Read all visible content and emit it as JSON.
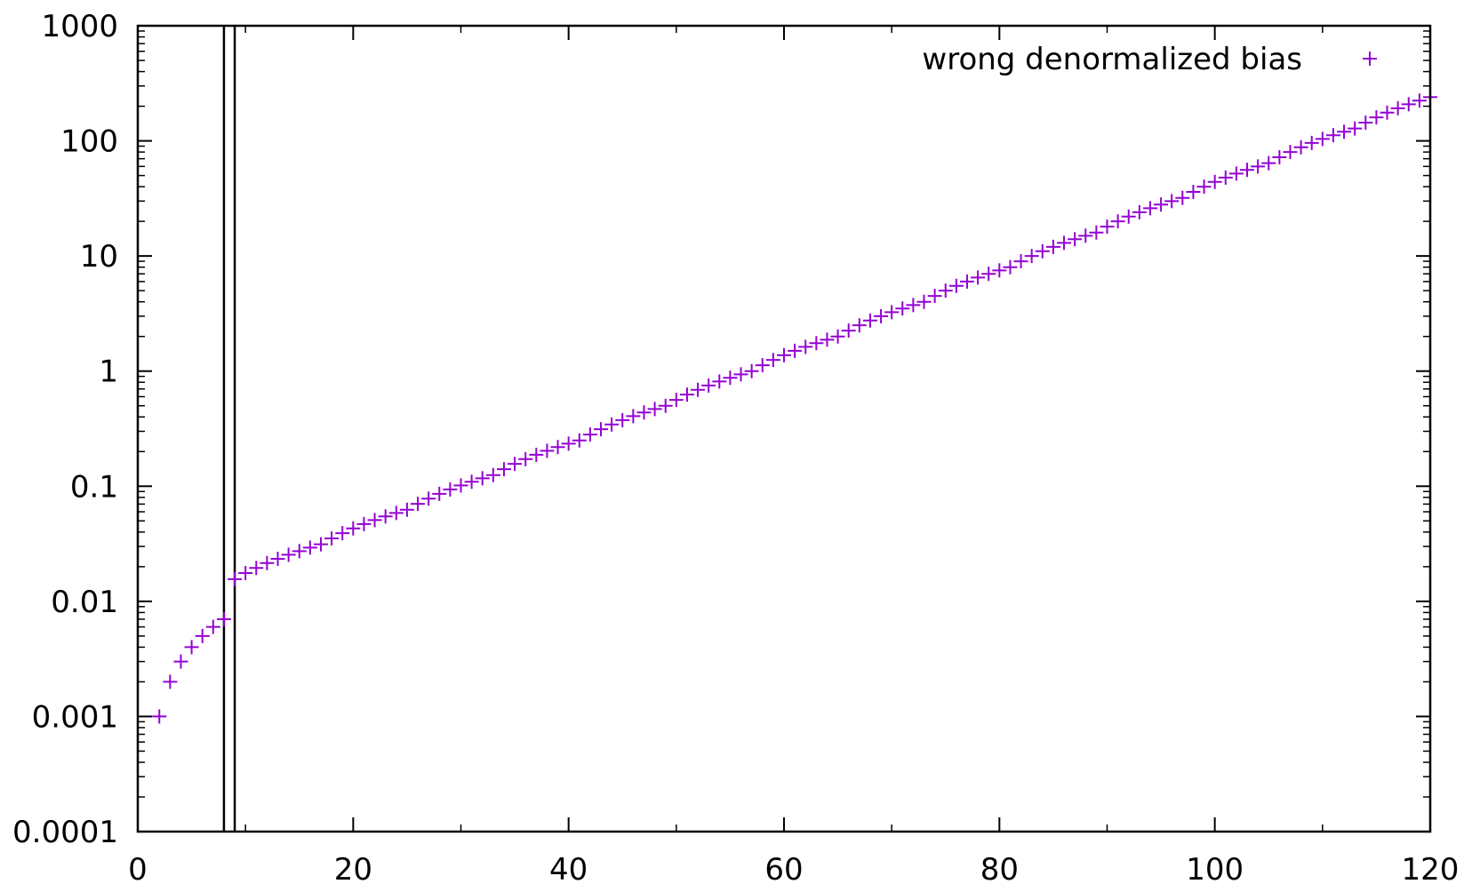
{
  "chart_data": {
    "type": "scatter",
    "title": "",
    "xlabel": "",
    "ylabel": "",
    "xlim": [
      0,
      120
    ],
    "ylim": [
      0.0001,
      1000
    ],
    "y_scale": "log",
    "grid": false,
    "legend_position": "top-right",
    "x_ticks": [
      0,
      20,
      40,
      60,
      80,
      100,
      120
    ],
    "x_tick_labels": [
      "0",
      "20",
      "40",
      "60",
      "80",
      "100",
      "120"
    ],
    "y_ticks": [
      0.0001,
      0.001,
      0.01,
      0.1,
      1,
      10,
      100,
      1000
    ],
    "y_tick_labels": [
      "0.0001",
      "0.001",
      "0.01",
      "0.1",
      "1",
      "10",
      "100",
      "1000"
    ],
    "vertical_lines": [
      8,
      9
    ],
    "series": [
      {
        "name": "wrong denormalized bias",
        "color": "#9400d3",
        "marker": "plus",
        "x": [
          2,
          3,
          4,
          5,
          6,
          7,
          8,
          9,
          10,
          11,
          12,
          13,
          14,
          15,
          16,
          17,
          18,
          19,
          20,
          21,
          22,
          23,
          24,
          25,
          26,
          27,
          28,
          29,
          30,
          31,
          32,
          33,
          34,
          35,
          36,
          37,
          38,
          39,
          40,
          41,
          42,
          43,
          44,
          45,
          46,
          47,
          48,
          49,
          50,
          51,
          52,
          53,
          54,
          55,
          56,
          57,
          58,
          59,
          60,
          61,
          62,
          63,
          64,
          65,
          66,
          67,
          68,
          69,
          70,
          71,
          72,
          73,
          74,
          75,
          76,
          77,
          78,
          79,
          80,
          81,
          82,
          83,
          84,
          85,
          86,
          87,
          88,
          89,
          90,
          91,
          92,
          93,
          94,
          95,
          96,
          97,
          98,
          99,
          100,
          101,
          102,
          103,
          104,
          105,
          106,
          107,
          108,
          109,
          110,
          111,
          112,
          113,
          114,
          115,
          116,
          117,
          118,
          119,
          120
        ],
        "y": [
          0.001,
          0.002,
          0.003,
          0.004,
          0.005,
          0.006,
          0.007,
          0.0156,
          0.0176,
          0.0195,
          0.0215,
          0.0234,
          0.0254,
          0.0273,
          0.0293,
          0.0313,
          0.0352,
          0.0391,
          0.043,
          0.0469,
          0.0508,
          0.0547,
          0.0586,
          0.0625,
          0.0703,
          0.0781,
          0.0859,
          0.0938,
          0.1016,
          0.1094,
          0.1172,
          0.125,
          0.1406,
          0.1563,
          0.1719,
          0.1875,
          0.2031,
          0.2188,
          0.2344,
          0.25,
          0.2813,
          0.3125,
          0.3438,
          0.375,
          0.4063,
          0.4375,
          0.4688,
          0.5,
          0.5625,
          0.625,
          0.6875,
          0.75,
          0.8125,
          0.875,
          0.9375,
          1,
          1.125,
          1.25,
          1.375,
          1.5,
          1.625,
          1.75,
          1.875,
          2,
          2.25,
          2.5,
          2.75,
          3,
          3.25,
          3.5,
          3.75,
          4,
          4.5,
          5,
          5.5,
          6,
          6.5,
          7,
          7.5,
          8,
          9,
          10,
          11,
          12,
          13,
          14,
          15,
          16,
          18,
          20,
          22,
          24,
          26,
          28,
          30,
          32,
          36,
          40,
          44,
          48,
          52,
          56,
          60,
          64,
          72,
          80,
          88,
          96,
          104,
          112,
          120,
          128,
          144,
          160,
          176,
          192,
          208,
          224,
          240
        ]
      }
    ]
  }
}
